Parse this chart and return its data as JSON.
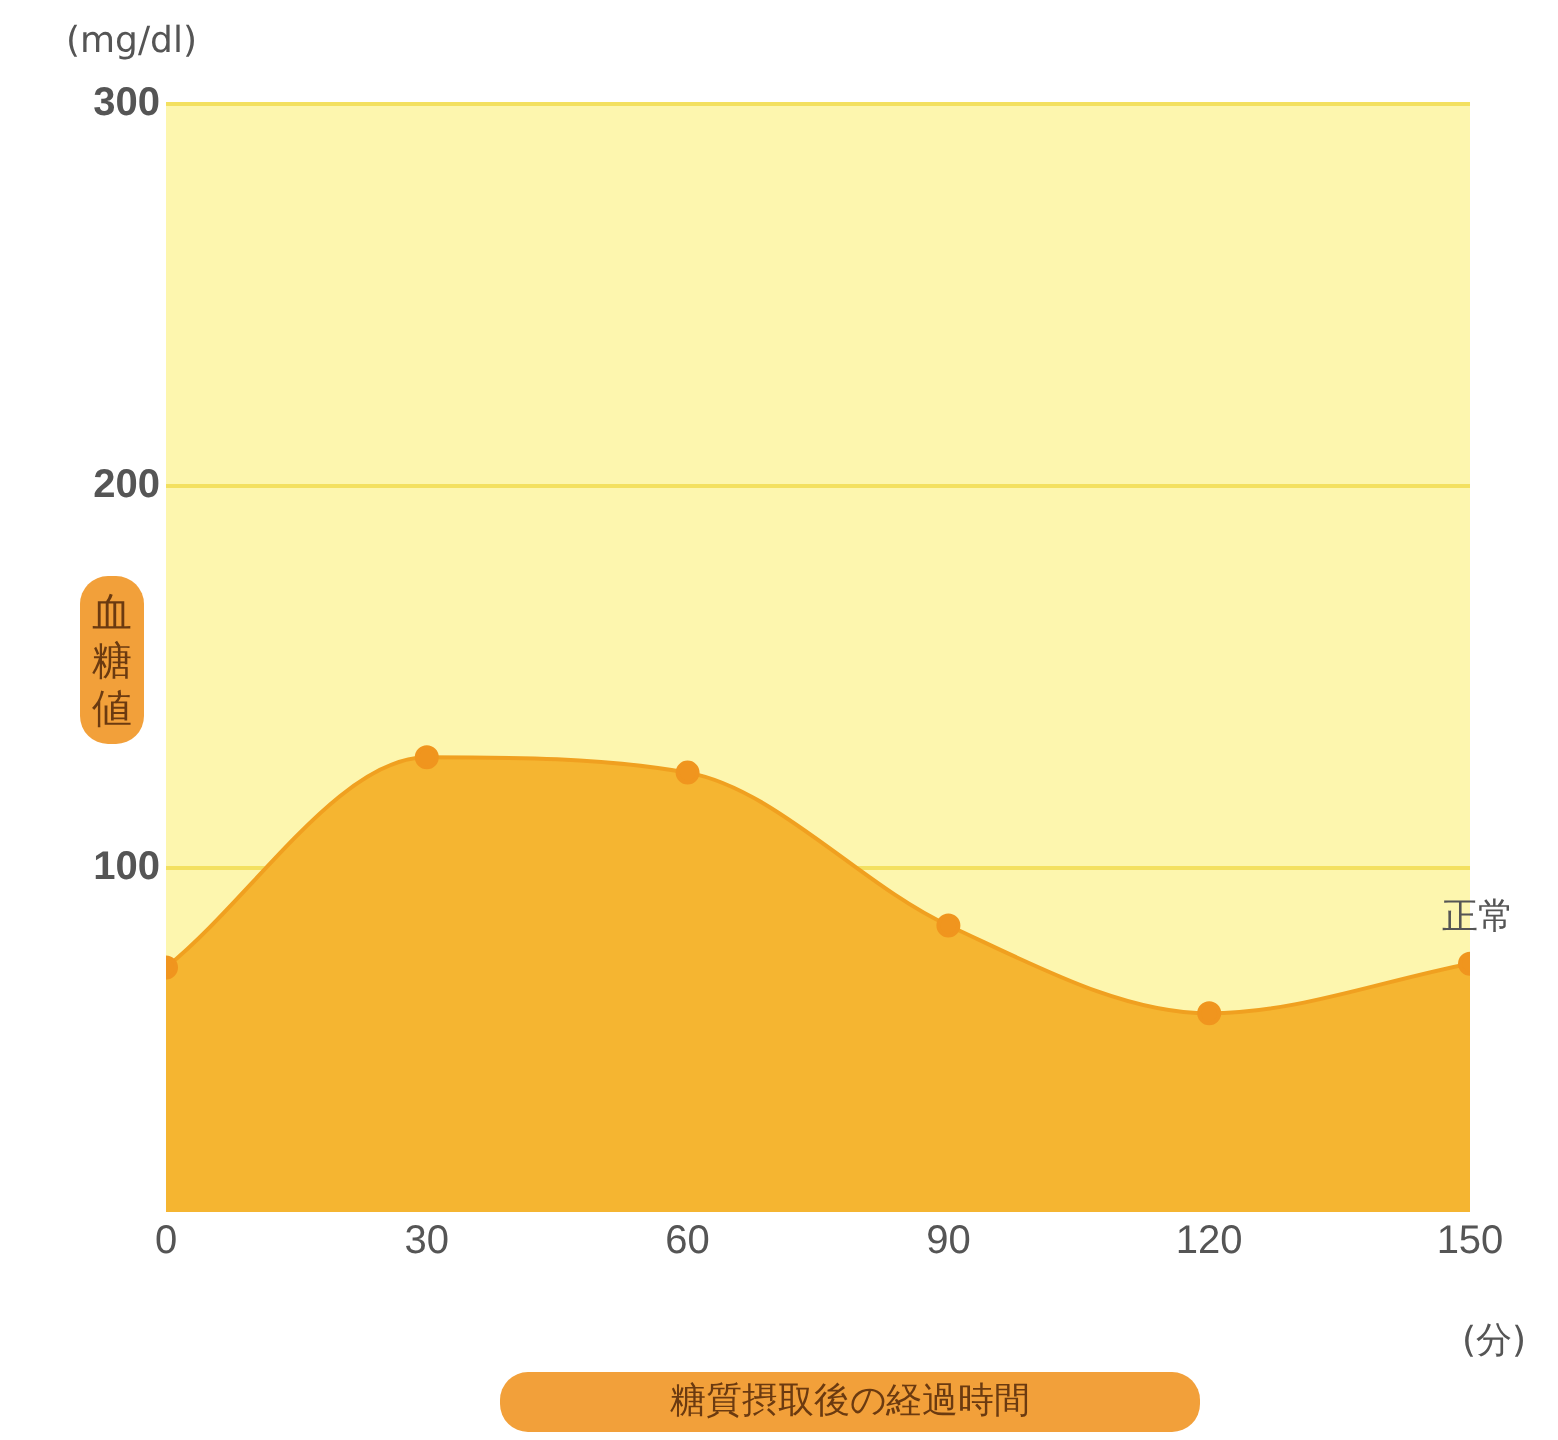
{
  "chart_data": {
    "type": "area",
    "xlabel": "糖質摂取後の経過時間",
    "ylabel": "血糖値",
    "x": [
      0,
      30,
      60,
      90,
      120,
      150
    ],
    "series": [
      {
        "color": "#f5b531",
        "values": [
          74,
          129,
          125,
          85,
          62,
          75
        ]
      }
    ],
    "xlim": [
      0,
      150
    ],
    "xticks": [
      0,
      30,
      60,
      90,
      120,
      150
    ],
    "ylim": [
      10,
      300
    ],
    "yticks": [
      100,
      200,
      300
    ],
    "grid": "y",
    "legend": false,
    "marker": "circle",
    "annotations": [
      "(mg/dl)",
      "(分)",
      {
        "text": "正常",
        "x": 150,
        "y": 75
      }
    ]
  }
}
